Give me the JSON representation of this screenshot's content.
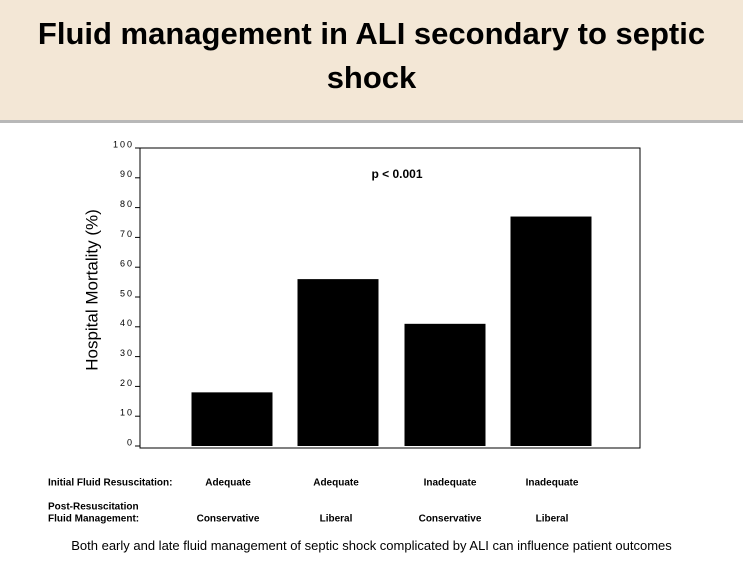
{
  "header": {
    "title": "Fluid management in ALI secondary to septic shock"
  },
  "chart_data": {
    "type": "bar",
    "y_label": "Hospital Mortality (%)",
    "annotation": "p < 0.001",
    "values": [
      18,
      56,
      41,
      77
    ],
    "color": "#000000",
    "ylim": [
      0,
      100
    ],
    "yticks": [
      0,
      10,
      20,
      30,
      40,
      50,
      60,
      70,
      80,
      90,
      100
    ],
    "category_rows": [
      {
        "label": [
          "Initial Fluid Resuscitation:"
        ],
        "labels": [
          "Adequate",
          "Adequate",
          "Inadequate",
          "Inadequate"
        ]
      },
      {
        "label": [
          "Post-Resuscitation",
          "Fluid Management:"
        ],
        "labels": [
          "Conservative",
          "Liberal",
          "Conservative",
          "Liberal"
        ]
      }
    ]
  },
  "caption": "Both early and late fluid management of septic shock complicated by ALI can influence patient outcomes"
}
